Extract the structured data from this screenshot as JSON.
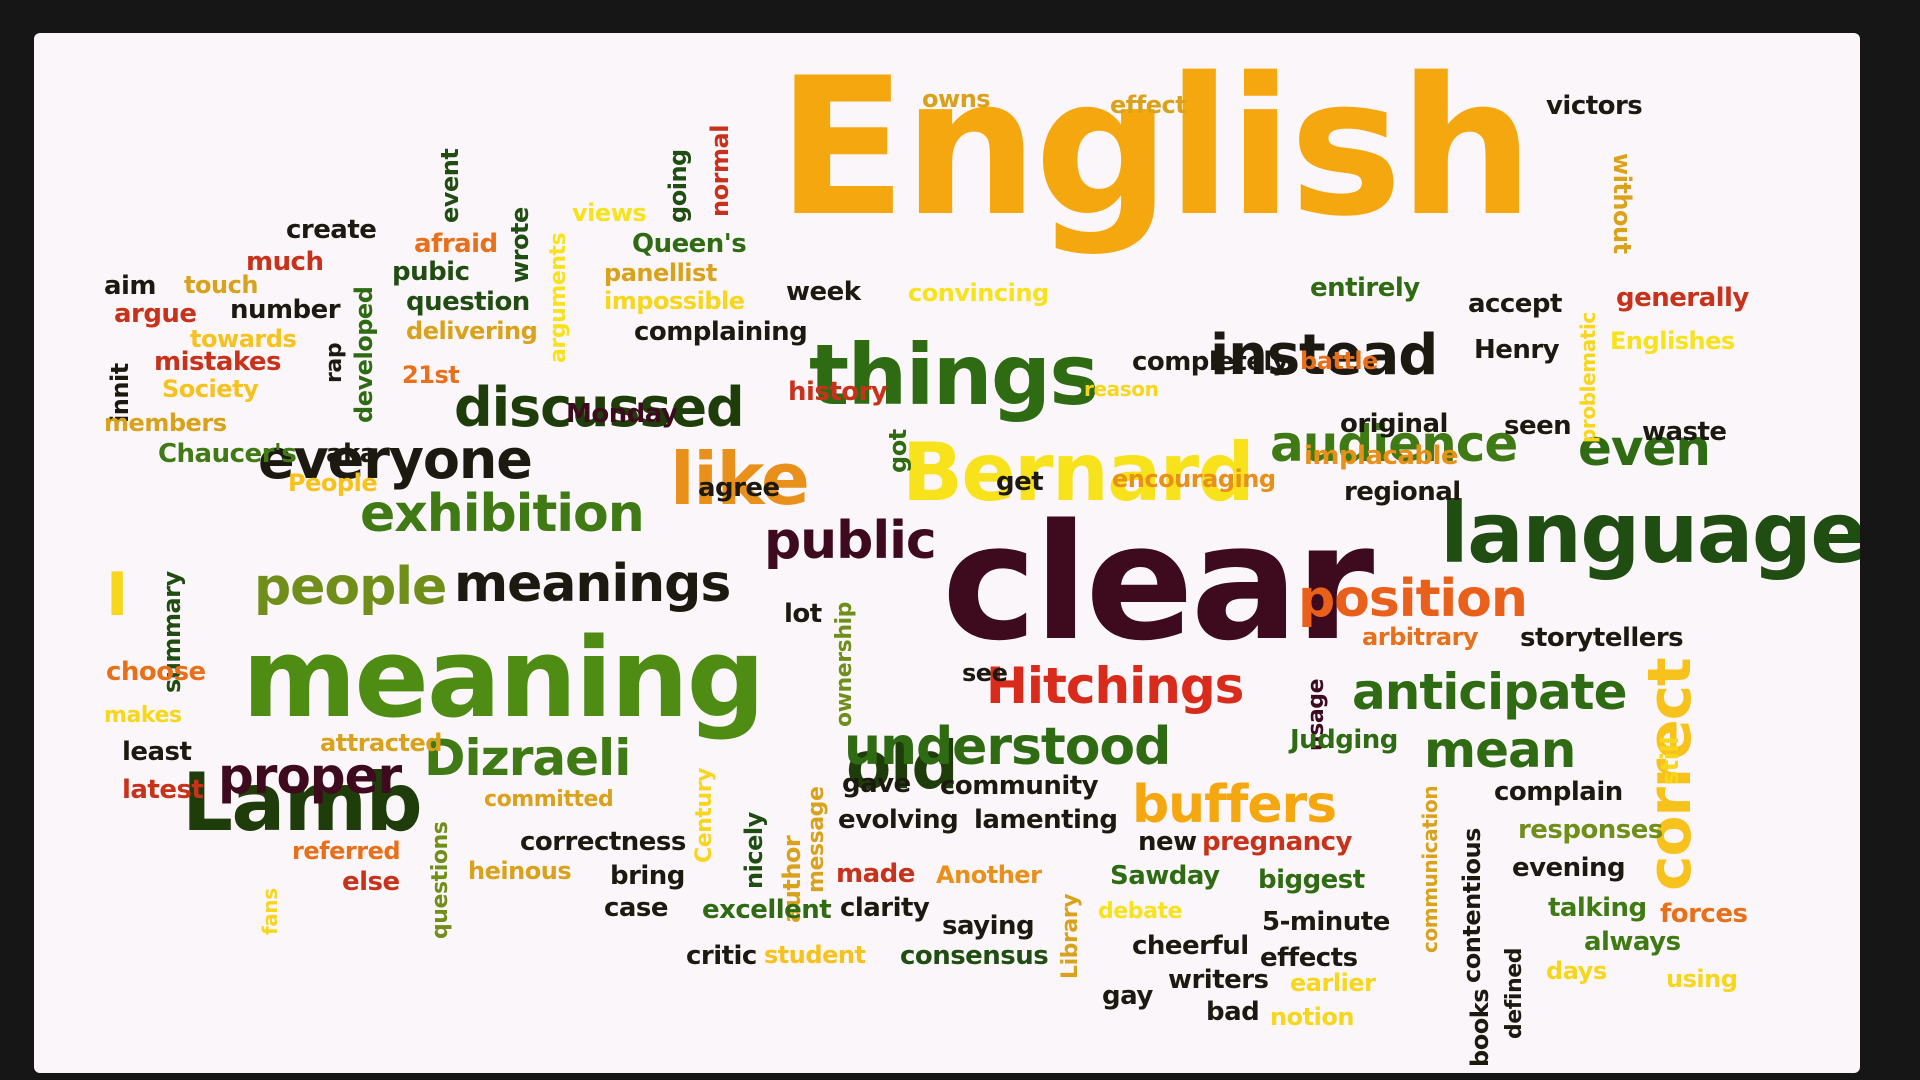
{
  "words": {
    "english": "English",
    "clear": "clear",
    "meaning": "meaning",
    "things": "things",
    "language": "language",
    "bernard": "Bernard",
    "instead": "instead",
    "lamb": "Lamb",
    "old": "old",
    "discussed": "discussed",
    "everyone": "everyone",
    "exhibition": "exhibition",
    "meanings": "meanings",
    "people": "people",
    "public": "public",
    "understood": "understood",
    "hitchings": "Hitchings",
    "position": "position",
    "anticipate": "anticipate",
    "correct": "correct",
    "audience": "audience",
    "even": "even",
    "mean": "mean",
    "buffers": "buffers",
    "proper": "proper",
    "dizraeli": "Dizraeli",
    "like": "like",
    "owns": "owns",
    "effect": "effect",
    "victors": "victors",
    "without": "without",
    "create": "create",
    "much": "much",
    "afraid": "afraid",
    "event": "event",
    "wrote": "wrote",
    "views": "views",
    "going": "going",
    "normal": "normal",
    "queens": "Queen's",
    "panellist": "panellist",
    "aim": "aim",
    "touch": "touch",
    "argue": "argue",
    "number": "number",
    "pubic": "pubic",
    "question": "question",
    "developed": "developed",
    "arguments": "arguments",
    "impossible": "impossible",
    "week": "week",
    "convincing": "convincing",
    "entirely": "entirely",
    "accept": "accept",
    "generally": "generally",
    "towards": "towards",
    "delivering": "delivering",
    "complaining": "complaining",
    "problematic": "problematic",
    "henry": "Henry",
    "englishes": "Englishes",
    "innit": "innit",
    "mistakes": "mistakes",
    "rap": "rap",
    "completely": "completely",
    "battle": "battle",
    "society": "Society",
    "21st": "21st",
    "history": "history",
    "reason": "reason",
    "members": "members",
    "monday": "Monday",
    "original": "original",
    "seen": "seen",
    "waste": "waste",
    "chaucers": "Chaucer's",
    "aka": "aka",
    "got": "got",
    "implacable": "implacable",
    "people_cap": "People",
    "agree": "agree",
    "get": "get",
    "encouraging": "encouraging",
    "regional": "regional",
    "summary": "summary",
    "i": "I",
    "lot": "lot",
    "ownership": "ownership",
    "usage": "usage",
    "arbitrary": "arbitrary",
    "storytellers": "storytellers",
    "choose": "choose",
    "see": "see",
    "makes": "makes",
    "least": "least",
    "attracted": "attracted",
    "century": "Century",
    "judging": "Judging",
    "communication": "communication",
    "still": "still",
    "latest": "latest",
    "committed": "committed",
    "gave": "gave",
    "community": "community",
    "nicely": "nicely",
    "author": "author",
    "message": "message",
    "complain": "complain",
    "questions": "questions",
    "evolving": "evolving",
    "lamenting": "lamenting",
    "contentious": "contentious",
    "fans": "fans",
    "referred": "referred",
    "correctness": "correctness",
    "new": "new",
    "pregnancy": "pregnancy",
    "responses": "responses",
    "else": "else",
    "heinous": "heinous",
    "bring": "bring",
    "made": "made",
    "another": "Another",
    "sawday": "Sawday",
    "biggest": "biggest",
    "evening": "evening",
    "case": "case",
    "excellent": "excellent",
    "clarity": "clarity",
    "library": "Library",
    "debate": "debate",
    "defined": "defined",
    "talking": "talking",
    "forces": "forces",
    "saying": "saying",
    "5minute": "5-minute",
    "always": "always",
    "cheerful": "cheerful",
    "critic": "critic",
    "student": "student",
    "consensus": "consensus",
    "effects": "effects",
    "books": "books",
    "days": "days",
    "using": "using",
    "gay": "gay",
    "writers": "writers",
    "earlier": "earlier",
    "bad": "bad",
    "notion": "notion"
  },
  "colors": {
    "orange": "#f5a70f",
    "yellow": "#f7d61c",
    "dark_green": "#1f4d12",
    "green": "#4f8c14",
    "olive": "#6f8e1a",
    "maroon": "#4a0d1a",
    "red": "#c8321b",
    "orange_red": "#e8701a",
    "dark": "#1c1a10",
    "gold": "#d9a21a"
  }
}
